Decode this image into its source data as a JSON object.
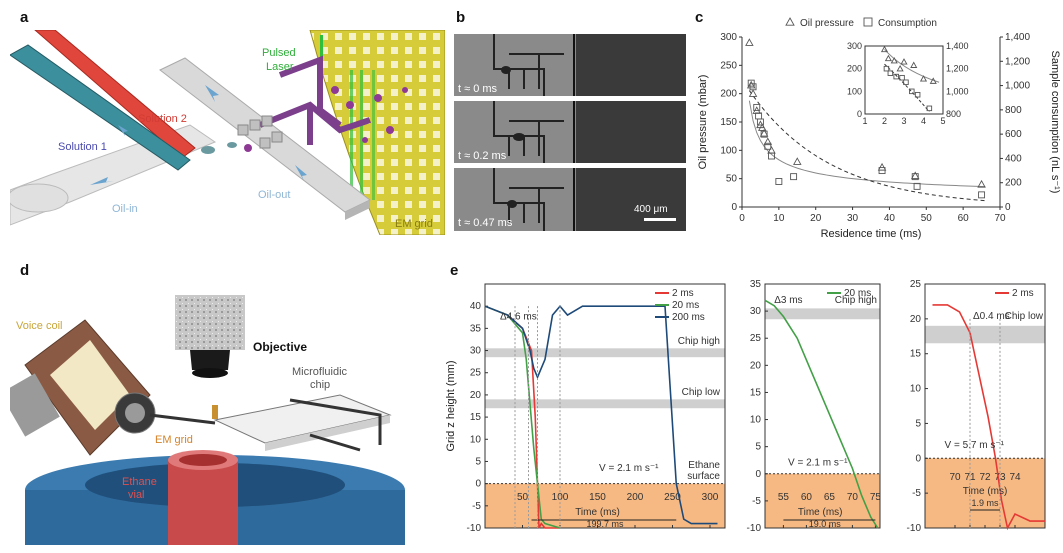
{
  "panel_labels": {
    "a": "a",
    "b": "b",
    "c": "c",
    "d": "d",
    "e": "e"
  },
  "panel_a": {
    "solution2": "Solution 2",
    "solution1": "Solution 1",
    "oil_in": "Oil-in",
    "oil_out": "Oil-out",
    "pulsed": "Pulsed",
    "laser": "Laser",
    "em_grid": "EM grid"
  },
  "panel_b": {
    "frames": [
      {
        "t_label": "t ≈ 0 ms"
      },
      {
        "t_label": "t ≈ 0.2 ms"
      },
      {
        "t_label": "t ≈ 0.47 ms"
      }
    ],
    "scale_bar": "400 μm"
  },
  "panel_d": {
    "voice_coil": "Voice coil",
    "objective": "Objective",
    "microfluidic": "Microfluidic",
    "chip": "chip",
    "em_grid": "EM grid",
    "ethane": "Ethane",
    "vial": "vial"
  },
  "chart_data": [
    {
      "id": "c-main",
      "type": "scatter",
      "xlabel": "Residence time (ms)",
      "ylabel": "Oil pressure (mbar)",
      "ylabel2": "Sample consumption (nL s⁻¹)",
      "xlim": [
        0,
        70
      ],
      "ylim": [
        0,
        300
      ],
      "y2lim": [
        0,
        1400
      ],
      "xticks": [
        0,
        10,
        20,
        30,
        40,
        50,
        60,
        70
      ],
      "yticks": [
        0,
        50,
        100,
        150,
        200,
        250,
        300
      ],
      "y2ticks": [
        "0",
        "200",
        "400",
        "600",
        "800",
        "1,000",
        "1,200",
        "1,400"
      ],
      "legend": [
        "Oil pressure",
        "Consumption"
      ],
      "legend_placement": "top",
      "series": [
        {
          "name": "Oil pressure",
          "marker": "triangle",
          "x": [
            2,
            2.5,
            3,
            4,
            5,
            5.5,
            6,
            7,
            8,
            15,
            38,
            47,
            65
          ],
          "y": [
            290,
            215,
            200,
            170,
            145,
            140,
            130,
            115,
            100,
            80,
            70,
            55,
            40
          ]
        },
        {
          "name": "Consumption",
          "marker": "square",
          "x": [
            2.5,
            3,
            4,
            4.5,
            5,
            6,
            7,
            8,
            10,
            14,
            38,
            47,
            47.5,
            65
          ],
          "y": [
            1020,
            990,
            820,
            750,
            700,
            600,
            500,
            420,
            210,
            250,
            300,
            250,
            170,
            100
          ]
        }
      ],
      "inset": {
        "xlim": [
          1,
          5
        ],
        "ylim": [
          0,
          300
        ],
        "y2lim": [
          800,
          1400
        ],
        "xticks": [
          1,
          2,
          3,
          4,
          5
        ],
        "yticks": [
          0,
          100,
          200,
          300
        ],
        "y2ticks": [
          "800",
          "1,000",
          "1,200",
          "1,400"
        ],
        "oil_pressure": {
          "x": [
            2,
            2.2,
            2.5,
            2.8,
            3,
            3.5,
            4,
            4.5
          ],
          "y": [
            285,
            245,
            235,
            200,
            230,
            215,
            155,
            145
          ]
        },
        "consumption": {
          "x": [
            2.1,
            2.3,
            2.6,
            2.9,
            3.1,
            3.4,
            3.7,
            4.3
          ],
          "y": [
            1200,
            1160,
            1130,
            1120,
            1080,
            1000,
            970,
            850
          ]
        }
      }
    },
    {
      "id": "e-main",
      "type": "line",
      "xlabel": "Time (ms)",
      "ylabel": "Grid z height (mm)",
      "xlim": [
        0,
        320
      ],
      "ylim": [
        -10,
        45
      ],
      "xticks": [
        50,
        100,
        150,
        200,
        250,
        300
      ],
      "yticks": [
        -10,
        -5,
        0,
        5,
        10,
        15,
        20,
        25,
        30,
        35,
        40
      ],
      "legend": [
        "2 ms",
        "20 ms",
        "200 ms"
      ],
      "legend_placement": "top-right",
      "series": [
        {
          "name": "2 ms",
          "color": "#e53935",
          "x": [
            0,
            30,
            50,
            62,
            67,
            70,
            72,
            75,
            80,
            100
          ],
          "y": [
            40,
            38,
            35,
            30,
            15,
            0,
            -10,
            -9,
            -10,
            -10
          ]
        },
        {
          "name": "20 ms",
          "color": "#43a047",
          "x": [
            0,
            30,
            50,
            55,
            60,
            65,
            70,
            75,
            80,
            100
          ],
          "y": [
            40,
            38,
            34,
            28,
            18,
            8,
            0,
            -8,
            -9,
            -10
          ]
        },
        {
          "name": "200 ms",
          "color": "#1e4a7a",
          "x": [
            0,
            30,
            50,
            60,
            65,
            70,
            80,
            90,
            100,
            110,
            130,
            170,
            240,
            255,
            265,
            275,
            290,
            310
          ],
          "y": [
            40,
            38,
            35,
            30,
            26,
            24,
            28,
            38,
            40,
            38,
            40,
            40,
            40,
            0,
            -8,
            -9,
            -9,
            -9
          ]
        }
      ],
      "annotations": [
        "Δ4.6 ms",
        "Chip high",
        "Chip low",
        "V = 2.1 m s⁻¹",
        "Ethane",
        "surface",
        "199.7 ms"
      ]
    },
    {
      "id": "e-20",
      "type": "line",
      "xlabel": "Time (ms)",
      "xlim": [
        51,
        76
      ],
      "ylim": [
        -10,
        35
      ],
      "xticks": [
        55,
        60,
        65,
        70,
        75
      ],
      "yticks": [
        -10,
        -5,
        0,
        5,
        10,
        15,
        20,
        25,
        30,
        35
      ],
      "legend": [
        "20 ms"
      ],
      "series": [
        {
          "name": "20 ms",
          "color": "#43a047",
          "x": [
            51,
            53,
            55,
            58,
            61,
            64,
            67,
            70,
            72,
            74,
            75.5
          ],
          "y": [
            32,
            31,
            29,
            25,
            19,
            13,
            7,
            1,
            -4,
            -8,
            -10
          ]
        }
      ],
      "annotations": [
        "Δ3 ms",
        "Chip high",
        "V = 2.1 m s⁻¹",
        "19.0 ms"
      ]
    },
    {
      "id": "e-2",
      "type": "line",
      "xlabel": "Time (ms)",
      "xlim": [
        68,
        76
      ],
      "ylim": [
        -10,
        25
      ],
      "xticks": [
        70,
        71,
        72,
        73,
        74
      ],
      "yticks": [
        -10,
        -5,
        0,
        5,
        10,
        15,
        20,
        25
      ],
      "legend": [
        "2 ms"
      ],
      "series": [
        {
          "name": "2 ms",
          "color": "#e53935",
          "x": [
            68.5,
            69.5,
            70.3,
            71,
            71.6,
            72.2,
            72.7,
            73.1,
            73.5,
            74,
            75,
            76
          ],
          "y": [
            22,
            22,
            21,
            18,
            12,
            6,
            0,
            -6,
            -10,
            -8,
            -9,
            -9
          ]
        }
      ],
      "annotations": [
        "Δ0.4 ms",
        "Chip low",
        "V = 5.7 m s⁻¹",
        "1.9 ms"
      ]
    }
  ]
}
